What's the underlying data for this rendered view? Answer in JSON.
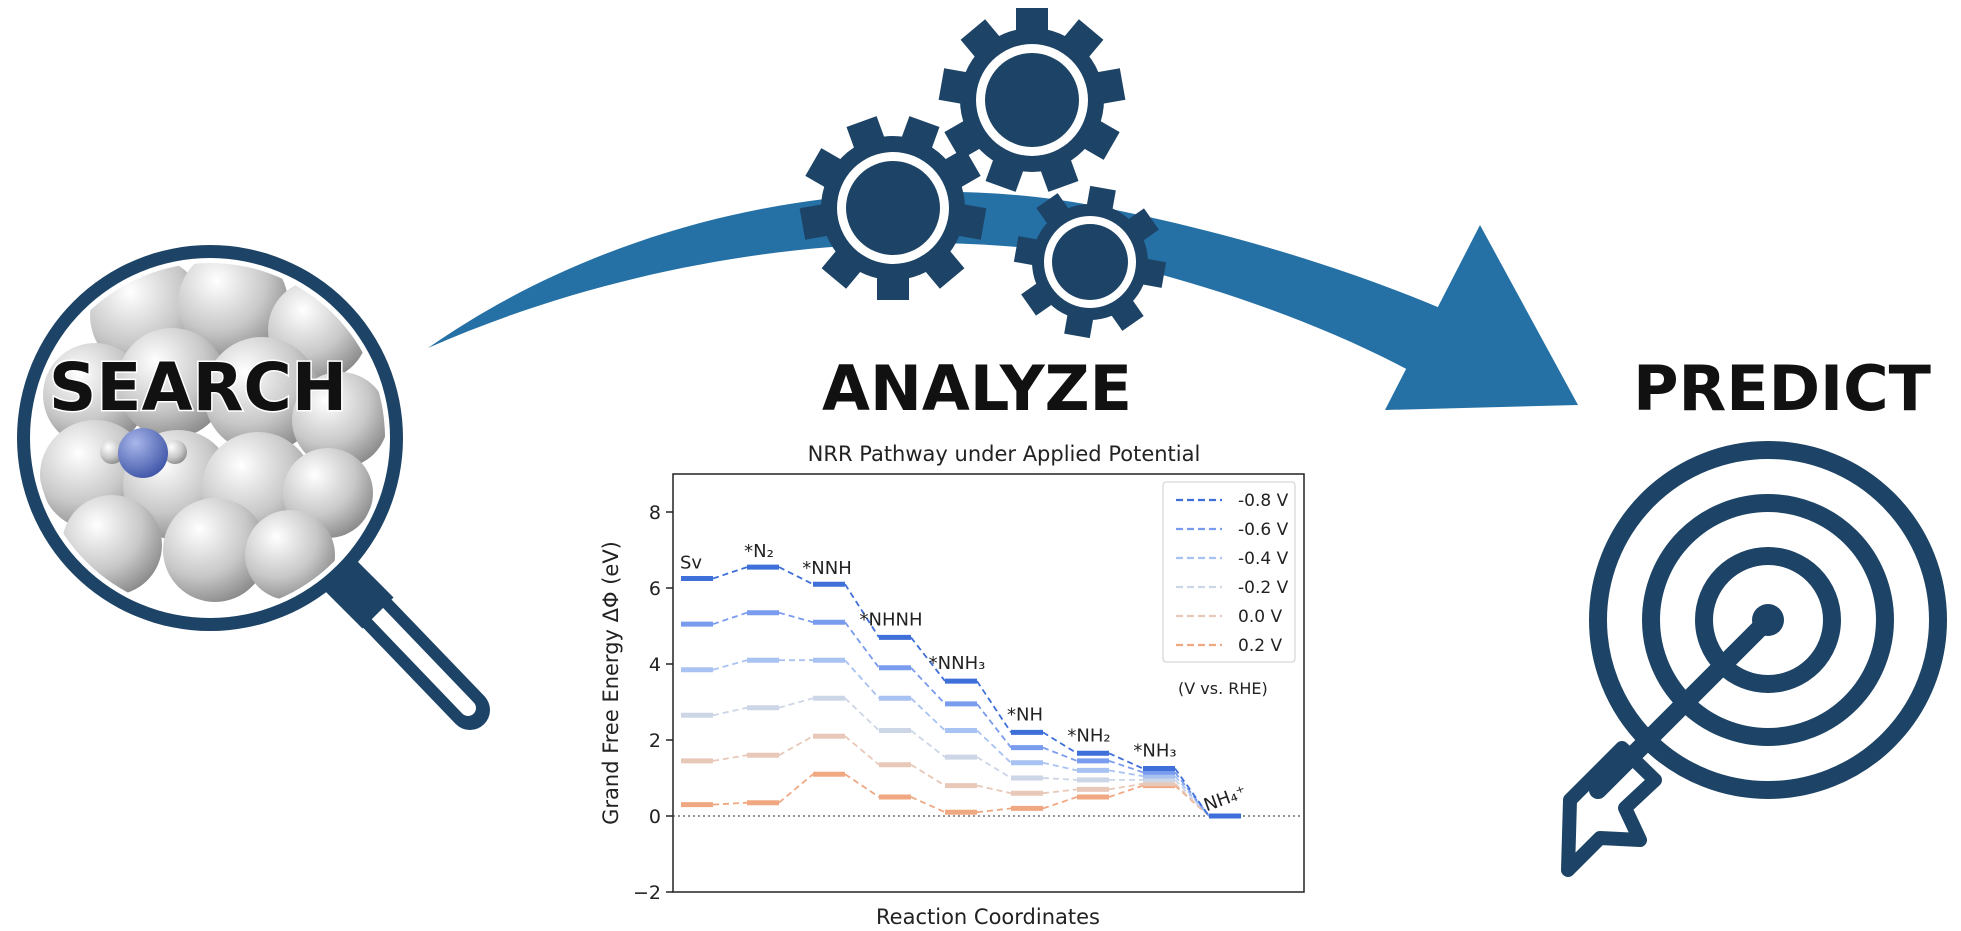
{
  "stages": {
    "search": "SEARCH",
    "analyze": "ANALYZE",
    "predict": "PREDICT"
  },
  "colors": {
    "navy": "#1d4466",
    "arrow_blue": "#2571a6",
    "dark_text": "#111111"
  },
  "icons": [
    "magnifier-icon",
    "gears-icon",
    "target-icon",
    "arrow-icon",
    "molecule-icon"
  ],
  "chart_data": {
    "type": "line",
    "title": "NRR Pathway under Applied Potential",
    "xlabel": "Reaction Coordinates",
    "ylabel": "Grand Free Energy ΔΦ (eV)",
    "ylim": [
      -2,
      9
    ],
    "yticks": [
      -2,
      0,
      2,
      4,
      6,
      8
    ],
    "zero_line": "dotted",
    "legend_position": "top-right",
    "legend_note": "(V vs. RHE)",
    "categories": [
      "Sv",
      "*N₂",
      "*NNH",
      "*NHNH",
      "*NNH₃",
      "*NH",
      "*NH₂",
      "*NH₃",
      "NH₄⁺"
    ],
    "series": [
      {
        "name": "-0.8 V",
        "color": "#3f6fd8",
        "values": [
          6.25,
          6.55,
          6.1,
          4.7,
          3.55,
          2.2,
          1.65,
          1.25,
          0.0
        ]
      },
      {
        "name": "-0.6 V",
        "color": "#7a9cee",
        "values": [
          5.05,
          5.35,
          5.1,
          3.9,
          2.95,
          1.8,
          1.45,
          1.15,
          0.0
        ]
      },
      {
        "name": "-0.4 V",
        "color": "#a8c2f2",
        "values": [
          3.85,
          4.1,
          4.1,
          3.1,
          2.25,
          1.4,
          1.2,
          1.05,
          0.0
        ]
      },
      {
        "name": "-0.2 V",
        "color": "#cdd6e6",
        "values": [
          2.65,
          2.85,
          3.1,
          2.25,
          1.55,
          1.0,
          0.95,
          0.95,
          0.0
        ]
      },
      {
        "name": "0.0 V",
        "color": "#e8c8b8",
        "values": [
          1.45,
          1.6,
          2.1,
          1.35,
          0.8,
          0.6,
          0.7,
          0.85,
          0.0
        ]
      },
      {
        "name": "0.2 V",
        "color": "#f0a882",
        "values": [
          0.3,
          0.35,
          1.1,
          0.5,
          0.1,
          0.2,
          0.5,
          0.8,
          0.0
        ]
      }
    ]
  }
}
